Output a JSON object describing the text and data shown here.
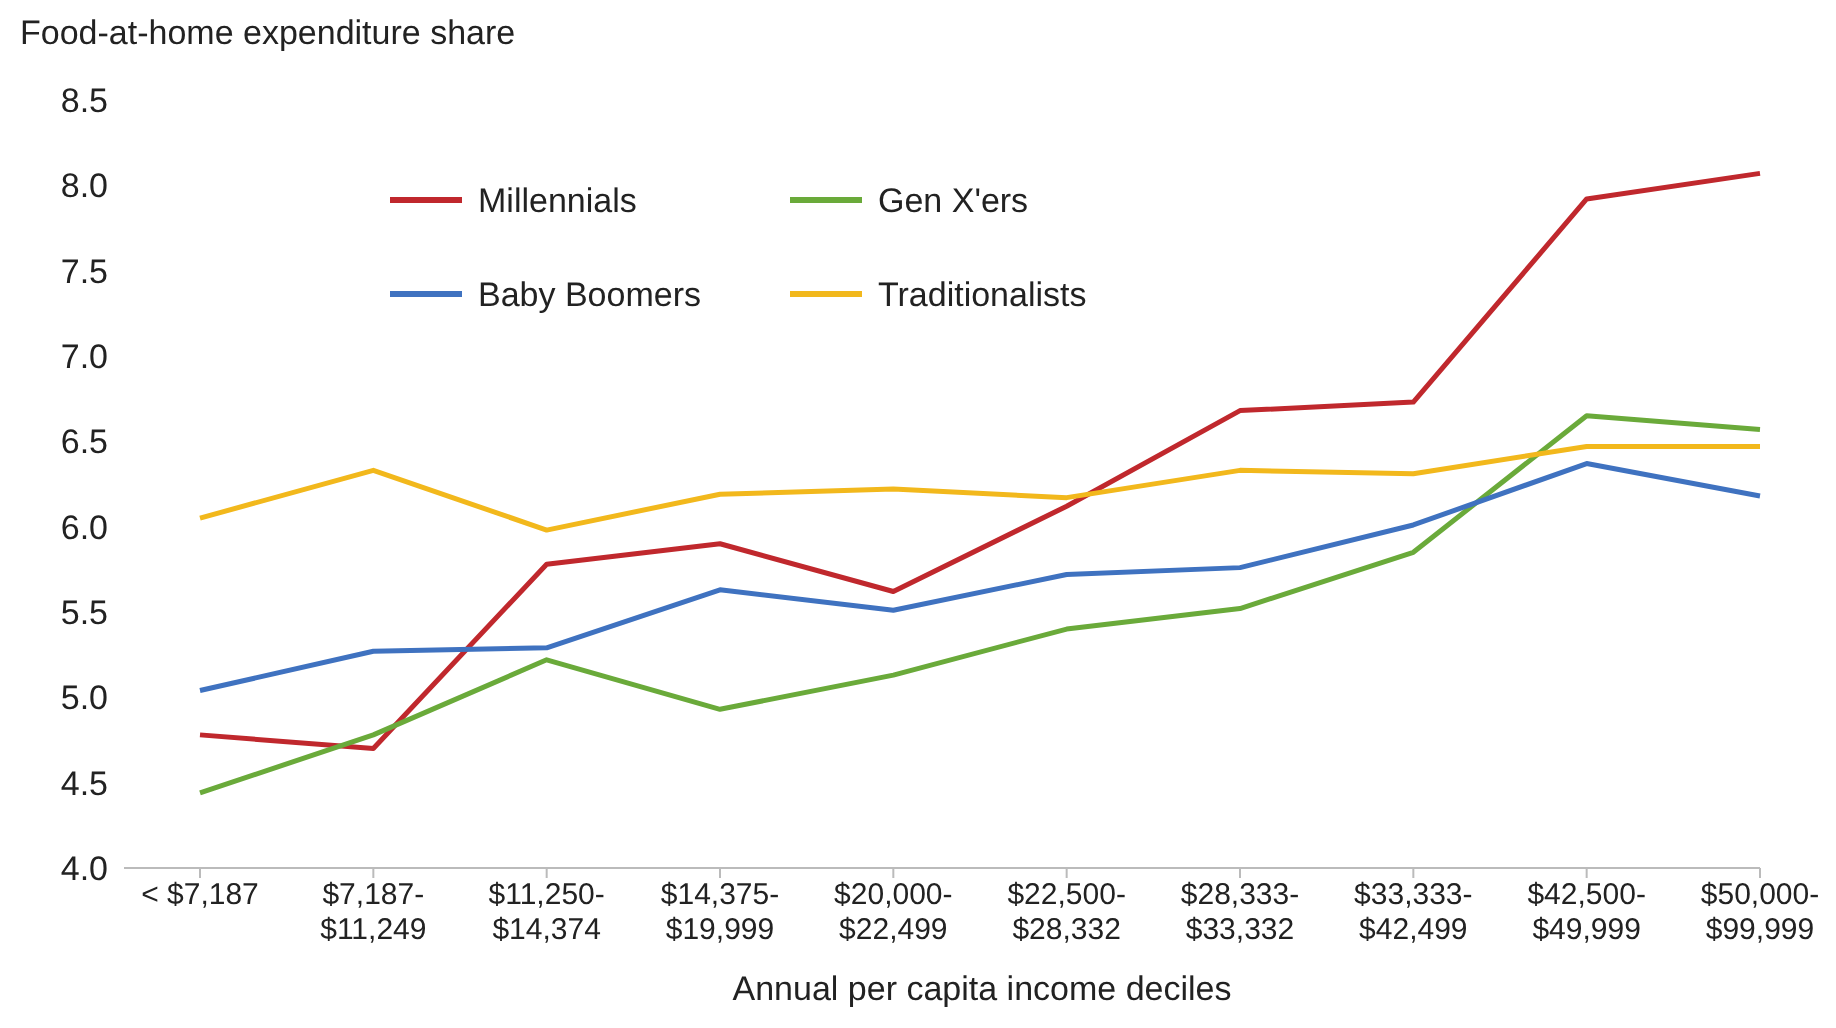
{
  "chart_data": {
    "type": "line",
    "ylabel": "Food-at-home expenditure share",
    "xlabel": "Annual per capita income deciles",
    "categories": [
      "< $7,187",
      "$7,187-$11,249",
      "$11,250-$14,374",
      "$14,375-$19,999",
      "$20,000-$22,499",
      "$22,500-$28,332",
      "$28,333-$33,332",
      "$33,333-$42,499",
      "$42,500-$49,999",
      "$50,000-$99,999"
    ],
    "series": [
      {
        "name": "Millennials",
        "color": "#c0282d",
        "values": [
          4.78,
          4.7,
          5.78,
          5.9,
          5.62,
          6.12,
          6.68,
          6.73,
          7.92,
          8.07
        ]
      },
      {
        "name": "Gen X'ers",
        "color": "#6aaa3a",
        "values": [
          4.44,
          4.78,
          5.22,
          4.93,
          5.13,
          5.4,
          5.52,
          5.85,
          6.65,
          6.57
        ]
      },
      {
        "name": "Baby Boomers",
        "color": "#3f72c0",
        "values": [
          5.04,
          5.27,
          5.29,
          5.63,
          5.51,
          5.72,
          5.76,
          6.01,
          6.37,
          6.18
        ]
      },
      {
        "name": "Traditionalists",
        "color": "#f2b81c",
        "values": [
          6.05,
          6.33,
          5.98,
          6.19,
          6.22,
          6.17,
          6.33,
          6.31,
          6.47,
          6.47
        ]
      }
    ],
    "ylim": [
      4.0,
      8.5
    ],
    "yticks": [
      {
        "value": 4,
        "label": "4.0"
      },
      {
        "value": 4.5,
        "label": "4.5"
      },
      {
        "value": 5,
        "label": "5.0"
      },
      {
        "value": 5.5,
        "label": "5.5"
      },
      {
        "value": 6,
        "label": "6.0"
      },
      {
        "value": 6.5,
        "label": "6.5"
      },
      {
        "value": 7,
        "label": "7.0"
      },
      {
        "value": 7.5,
        "label": "7.5"
      },
      {
        "value": 8,
        "label": "8.0"
      },
      {
        "value": 8.5,
        "label": "8.5"
      }
    ],
    "grid": false,
    "legend": "top left",
    "marker": "none",
    "line_style": "solid"
  }
}
